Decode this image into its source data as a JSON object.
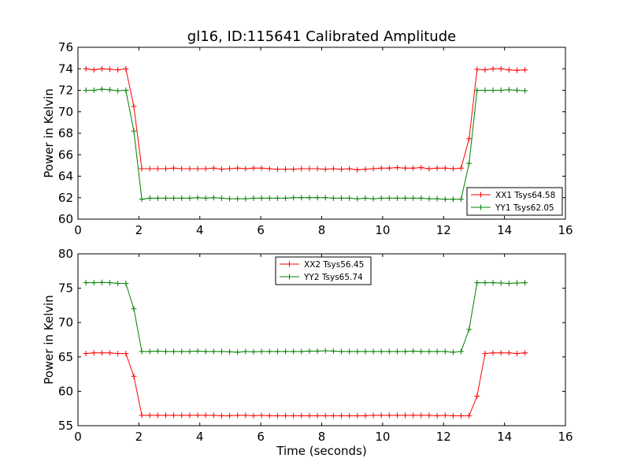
{
  "chart_data": [
    {
      "type": "line",
      "title": "gl16, ID:115641 Calibrated Amplitude",
      "xlabel": "",
      "ylabel": "Power in Kelvin",
      "xlim": [
        0,
        16
      ],
      "ylim": [
        60,
        76
      ],
      "xticks": [
        "0",
        "2",
        "4",
        "6",
        "8",
        "10",
        "12",
        "14",
        "16"
      ],
      "yticks": [
        "60",
        "62",
        "64",
        "66",
        "68",
        "70",
        "72",
        "74",
        "76"
      ],
      "grid": false,
      "legend_position": "lower-right",
      "x": [
        0.262,
        0.524,
        0.786,
        1.048,
        1.31,
        1.572,
        1.834,
        2.096,
        2.358,
        2.62,
        2.882,
        3.144,
        3.406,
        3.668,
        3.93,
        4.192,
        4.454,
        4.716,
        4.978,
        5.24,
        5.502,
        5.764,
        6.026,
        6.288,
        6.55,
        6.812,
        7.074,
        7.336,
        7.598,
        7.86,
        8.122,
        8.384,
        8.646,
        8.908,
        9.17,
        9.432,
        9.694,
        9.956,
        10.218,
        10.48,
        10.742,
        11.004,
        11.266,
        11.528,
        11.79,
        12.052,
        12.314,
        12.576,
        12.838,
        13.1,
        13.362,
        13.624,
        13.886,
        14.148,
        14.41,
        14.672
      ],
      "series": [
        {
          "name": "XX1 Tsys64.58",
          "color": "#ff0000",
          "values": [
            74.0,
            73.9,
            74.0,
            73.95,
            73.9,
            74.0,
            70.5,
            64.7,
            64.7,
            64.7,
            64.7,
            64.75,
            64.7,
            64.7,
            64.7,
            64.7,
            64.75,
            64.65,
            64.7,
            64.75,
            64.7,
            64.75,
            64.75,
            64.7,
            64.65,
            64.65,
            64.65,
            64.7,
            64.7,
            64.7,
            64.65,
            64.7,
            64.65,
            64.7,
            64.6,
            64.65,
            64.7,
            64.75,
            64.75,
            64.8,
            64.75,
            64.75,
            64.8,
            64.7,
            64.75,
            64.75,
            64.7,
            64.75,
            67.5,
            73.95,
            73.9,
            74.0,
            74.0,
            73.9,
            73.85,
            73.9
          ]
        },
        {
          "name": "YY1 Tsys62.05",
          "color": "#008000",
          "values": [
            72.0,
            72.0,
            72.1,
            72.05,
            71.95,
            72.0,
            68.2,
            61.85,
            61.95,
            61.95,
            61.95,
            61.95,
            61.95,
            61.95,
            62.0,
            61.95,
            62.0,
            61.95,
            61.9,
            61.9,
            61.9,
            61.95,
            61.95,
            61.95,
            61.95,
            61.95,
            62.0,
            62.0,
            62.0,
            62.0,
            62.0,
            61.95,
            61.95,
            61.95,
            61.9,
            61.95,
            61.9,
            61.95,
            61.95,
            61.95,
            61.95,
            61.95,
            61.95,
            61.9,
            61.9,
            61.85,
            61.85,
            61.85,
            65.2,
            72.0,
            72.0,
            72.0,
            72.0,
            72.05,
            72.0,
            71.95
          ]
        }
      ]
    },
    {
      "type": "line",
      "title": "",
      "xlabel": "Time (seconds)",
      "ylabel": "Power in Kelvin",
      "xlim": [
        0,
        16
      ],
      "ylim": [
        55,
        80
      ],
      "xticks": [
        "0",
        "2",
        "4",
        "6",
        "8",
        "10",
        "12",
        "14",
        "16"
      ],
      "yticks": [
        "55",
        "60",
        "65",
        "70",
        "75",
        "80"
      ],
      "grid": false,
      "legend_position": "upper-center",
      "x": [
        0.262,
        0.524,
        0.786,
        1.048,
        1.31,
        1.572,
        1.834,
        2.096,
        2.358,
        2.62,
        2.882,
        3.144,
        3.406,
        3.668,
        3.93,
        4.192,
        4.454,
        4.716,
        4.978,
        5.24,
        5.502,
        5.764,
        6.026,
        6.288,
        6.55,
        6.812,
        7.074,
        7.336,
        7.598,
        7.86,
        8.122,
        8.384,
        8.646,
        8.908,
        9.17,
        9.432,
        9.694,
        9.956,
        10.218,
        10.48,
        10.742,
        11.004,
        11.266,
        11.528,
        11.79,
        12.052,
        12.314,
        12.576,
        12.838,
        13.1,
        13.362,
        13.624,
        13.886,
        14.148,
        14.41,
        14.672
      ],
      "series": [
        {
          "name": "XX2 Tsys56.45",
          "color": "#ff0000",
          "values": [
            65.5,
            65.6,
            65.6,
            65.6,
            65.5,
            65.5,
            62.2,
            56.5,
            56.5,
            56.5,
            56.5,
            56.5,
            56.5,
            56.5,
            56.5,
            56.5,
            56.5,
            56.45,
            56.45,
            56.5,
            56.5,
            56.45,
            56.5,
            56.45,
            56.45,
            56.45,
            56.45,
            56.45,
            56.45,
            56.45,
            56.45,
            56.45,
            56.45,
            56.45,
            56.45,
            56.45,
            56.5,
            56.5,
            56.5,
            56.5,
            56.5,
            56.5,
            56.5,
            56.5,
            56.45,
            56.5,
            56.45,
            56.45,
            56.45,
            59.3,
            65.5,
            65.6,
            65.6,
            65.6,
            65.5,
            65.6
          ]
        },
        {
          "name": "YY2 Tsys65.74",
          "color": "#008000",
          "values": [
            75.8,
            75.8,
            75.85,
            75.8,
            75.7,
            75.7,
            72.0,
            65.8,
            65.8,
            65.85,
            65.8,
            65.8,
            65.8,
            65.8,
            65.85,
            65.8,
            65.8,
            65.8,
            65.75,
            65.7,
            65.8,
            65.75,
            65.8,
            65.8,
            65.8,
            65.8,
            65.8,
            65.8,
            65.85,
            65.85,
            65.9,
            65.85,
            65.8,
            65.8,
            65.8,
            65.8,
            65.8,
            65.8,
            65.8,
            65.8,
            65.8,
            65.85,
            65.8,
            65.8,
            65.8,
            65.8,
            65.7,
            65.8,
            69.0,
            75.8,
            75.8,
            75.8,
            75.75,
            75.7,
            75.75,
            75.8
          ]
        }
      ]
    }
  ]
}
